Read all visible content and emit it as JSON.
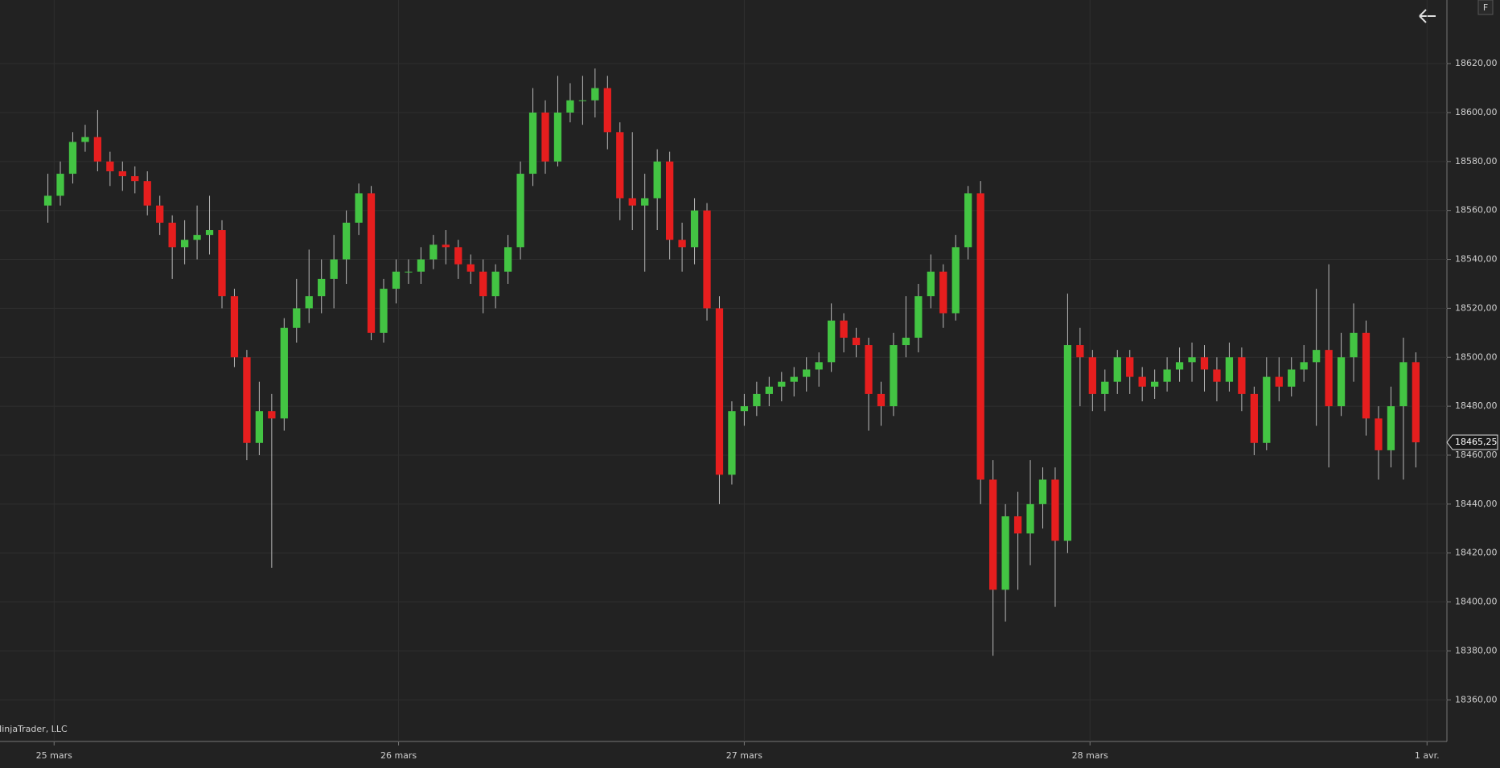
{
  "chart_data": {
    "type": "candlestick",
    "watermark": "NinjaTrader, LLC",
    "corner_label": "F",
    "up_color": "#43c443",
    "down_color": "#e61e1e",
    "wick_color": "#b8b8b8",
    "grid": true,
    "x": [
      0,
      1,
      2,
      3,
      4,
      5,
      6,
      7,
      8,
      9,
      10,
      11,
      12,
      13,
      14,
      15,
      16,
      17,
      18,
      19,
      20,
      21,
      22,
      23,
      24,
      25,
      26,
      27,
      28,
      29,
      30,
      31,
      32,
      33,
      34,
      35,
      36,
      37,
      38,
      39,
      40,
      41,
      42,
      43,
      44,
      45,
      46,
      47,
      48,
      49,
      50,
      51,
      52,
      53,
      54,
      55,
      56,
      57,
      58,
      59,
      60,
      61,
      62,
      63,
      64,
      65,
      66,
      67,
      68,
      69,
      70,
      71,
      72,
      73,
      74,
      75,
      76,
      77,
      78,
      79,
      80,
      81,
      82,
      83,
      84,
      85,
      86,
      87,
      88,
      89,
      90,
      91,
      92,
      93,
      94,
      95,
      96,
      97,
      98,
      99,
      100,
      101,
      102,
      103,
      104,
      105,
      106,
      107,
      108,
      109,
      110
    ],
    "open": [
      18562,
      18566,
      18575,
      18588,
      18590,
      18580,
      18576,
      18574,
      18572,
      18562,
      18555,
      18545,
      18548,
      18550,
      18552,
      18525,
      18500,
      18465,
      18478,
      18475,
      18512,
      18520,
      18525,
      18532,
      18540,
      18555,
      18567,
      18510,
      18528,
      18535,
      18535,
      18540,
      18546,
      18545,
      18538,
      18535,
      18525,
      18535,
      18545,
      18575,
      18600,
      18580,
      18600,
      18605,
      18605,
      18610,
      18592,
      18565,
      18562,
      18565,
      18580,
      18548,
      18545,
      18560,
      18520,
      18452,
      18478,
      18480,
      18485,
      18488,
      18490,
      18492,
      18495,
      18498,
      18515,
      18508,
      18505,
      18485,
      18480,
      18505,
      18508,
      18525,
      18535,
      18518,
      18545,
      18567,
      18450,
      18405,
      18435,
      18428,
      18440,
      18450,
      18425,
      18505,
      18500,
      18485,
      18490,
      18500,
      18492,
      18488,
      18490,
      18495,
      18498,
      18500,
      18495,
      18490,
      18500,
      18485,
      18465,
      18492,
      18488,
      18495,
      18498,
      18503,
      18480,
      18500,
      18510,
      18475,
      18462,
      18480,
      18498
    ],
    "high": [
      18575,
      18580,
      18592,
      18595,
      18601,
      18584,
      18580,
      18578,
      18576,
      18566,
      18558,
      18556,
      18562,
      18566,
      18556,
      18528,
      18503,
      18490,
      18485,
      18516,
      18532,
      18544,
      18540,
      18550,
      18560,
      18571,
      18570,
      18532,
      18540,
      18540,
      18545,
      18550,
      18552,
      18548,
      18542,
      18540,
      18538,
      18550,
      18580,
      18610,
      18605,
      18615,
      18612,
      18615,
      18618,
      18615,
      18596,
      18592,
      18575,
      18585,
      18584,
      18555,
      18565,
      18563,
      18525,
      18482,
      18485,
      18490,
      18492,
      18494,
      18496,
      18500,
      18502,
      18522,
      18518,
      18512,
      18508,
      18490,
      18510,
      18525,
      18530,
      18542,
      18538,
      18550,
      18570,
      18572,
      18458,
      18440,
      18445,
      18458,
      18455,
      18455,
      18526,
      18512,
      18503,
      18495,
      18503,
      18503,
      18496,
      18495,
      18500,
      18504,
      18506,
      18505,
      18500,
      18506,
      18504,
      18488,
      18500,
      18500,
      18500,
      18505,
      18528,
      18538,
      18510,
      18522,
      18515,
      18480,
      18488,
      18508,
      18502
    ],
    "low": [
      18555,
      18562,
      18571,
      18584,
      18576,
      18570,
      18568,
      18567,
      18558,
      18550,
      18532,
      18538,
      18540,
      18542,
      18520,
      18496,
      18458,
      18460,
      18414,
      18470,
      18506,
      18514,
      18518,
      18520,
      18530,
      18550,
      18507,
      18506,
      18522,
      18530,
      18530,
      18536,
      18538,
      18532,
      18530,
      18518,
      18520,
      18530,
      18540,
      18570,
      18575,
      18578,
      18596,
      18595,
      18598,
      18585,
      18556,
      18552,
      18535,
      18552,
      18540,
      18535,
      18538,
      18515,
      18440,
      18448,
      18472,
      18476,
      18480,
      18482,
      18484,
      18486,
      18488,
      18494,
      18502,
      18500,
      18470,
      18472,
      18476,
      18500,
      18502,
      18520,
      18512,
      18515,
      18540,
      18440,
      18378,
      18392,
      18405,
      18415,
      18430,
      18398,
      18420,
      18480,
      18478,
      18478,
      18485,
      18485,
      18482,
      18483,
      18486,
      18490,
      18490,
      18486,
      18482,
      18486,
      18478,
      18460,
      18462,
      18482,
      18484,
      18490,
      18472,
      18455,
      18476,
      18490,
      18468,
      18450,
      18455,
      18450,
      18455
    ],
    "close": [
      18566,
      18575,
      18588,
      18590,
      18580,
      18576,
      18574,
      18572,
      18562,
      18555,
      18545,
      18548,
      18550,
      18552,
      18525,
      18500,
      18465,
      18478,
      18475,
      18512,
      18520,
      18525,
      18532,
      18540,
      18555,
      18567,
      18510,
      18528,
      18535,
      18535,
      18540,
      18546,
      18545,
      18538,
      18535,
      18525,
      18535,
      18545,
      18575,
      18600,
      18580,
      18600,
      18605,
      18605,
      18610,
      18592,
      18565,
      18562,
      18565,
      18580,
      18548,
      18545,
      18560,
      18520,
      18452,
      18478,
      18480,
      18485,
      18488,
      18490,
      18492,
      18495,
      18498,
      18515,
      18508,
      18505,
      18485,
      18480,
      18505,
      18508,
      18525,
      18535,
      18518,
      18545,
      18567,
      18450,
      18405,
      18435,
      18428,
      18440,
      18450,
      18425,
      18505,
      18500,
      18485,
      18490,
      18500,
      18492,
      18488,
      18490,
      18495,
      18498,
      18500,
      18495,
      18490,
      18500,
      18485,
      18465,
      18492,
      18488,
      18495,
      18498,
      18503,
      18480,
      18500,
      18510,
      18475,
      18462,
      18480,
      18498,
      18465.25
    ],
    "last_price": {
      "value": 18465.25,
      "label": "18465,25"
    },
    "xlim": [
      -3.85,
      112.5
    ],
    "ylim": [
      18343,
      18646
    ],
    "xticks": [
      {
        "value": 0.5,
        "label": "25 mars"
      },
      {
        "value": 28.2,
        "label": "26 mars"
      },
      {
        "value": 56,
        "label": "27 mars"
      },
      {
        "value": 83.8,
        "label": "28 mars"
      },
      {
        "value": 110.9,
        "label": "1 avr."
      }
    ],
    "yticks": [
      {
        "value": 18360,
        "label": "18360,00"
      },
      {
        "value": 18380,
        "label": "18380,00"
      },
      {
        "value": 18400,
        "label": "18400,00"
      },
      {
        "value": 18420,
        "label": "18420,00"
      },
      {
        "value": 18440,
        "label": "18440,00"
      },
      {
        "value": 18460,
        "label": "18460,00"
      },
      {
        "value": 18480,
        "label": "18480,00"
      },
      {
        "value": 18500,
        "label": "18500,00"
      },
      {
        "value": 18520,
        "label": "18520,00"
      },
      {
        "value": 18540,
        "label": "18540,00"
      },
      {
        "value": 18560,
        "label": "18560,00"
      },
      {
        "value": 18580,
        "label": "18580,00"
      },
      {
        "value": 18600,
        "label": "18600,00"
      },
      {
        "value": 18620,
        "label": "18620,00"
      }
    ]
  }
}
